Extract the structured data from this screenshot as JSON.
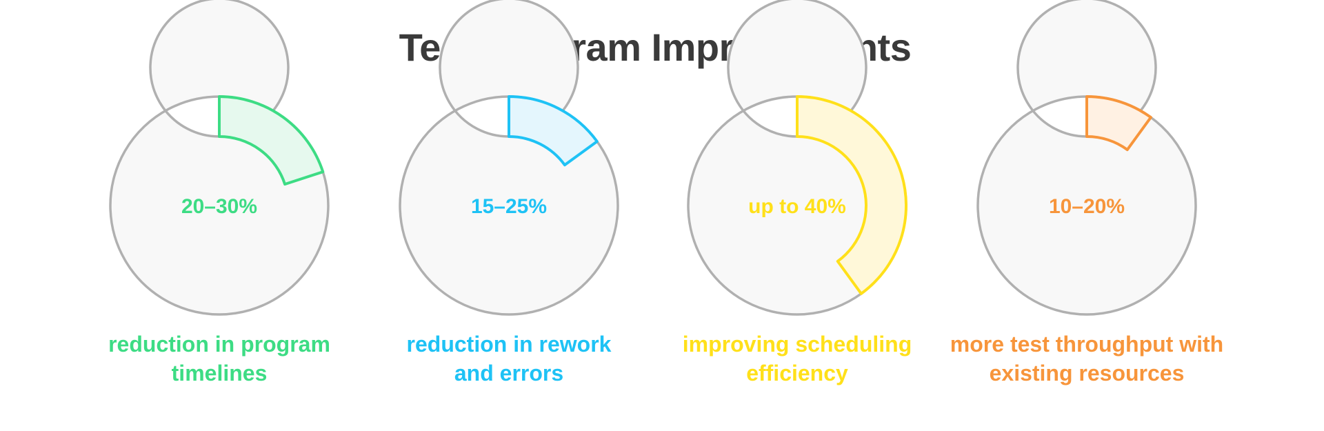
{
  "title": "Test Program Improvements",
  "chart_data": {
    "type": "donut",
    "title": "Test Program Improvements",
    "track_color": "#f8f8f8",
    "track_stroke": "#b0b0b0",
    "items": [
      {
        "value_label": "20–30%",
        "caption_lines": [
          "reduction in program",
          "timelines"
        ],
        "fraction": 0.2,
        "color": "#3ddc84",
        "fill": "#e6f9ee"
      },
      {
        "value_label": "15–25%",
        "caption_lines": [
          "reduction in rework",
          "and errors"
        ],
        "fraction": 0.15,
        "color": "#1ec2f5",
        "fill": "#e4f6fd"
      },
      {
        "value_label": "up to 40%",
        "caption_lines": [
          "improving scheduling",
          "efficiency"
        ],
        "fraction": 0.4,
        "color": "#ffe01a",
        "fill": "#fff8d9"
      },
      {
        "value_label": "10–20%",
        "caption_lines": [
          "more test throughput with",
          "existing resources"
        ],
        "fraction": 0.1,
        "color": "#f7953b",
        "fill": "#fff1e3"
      }
    ]
  }
}
